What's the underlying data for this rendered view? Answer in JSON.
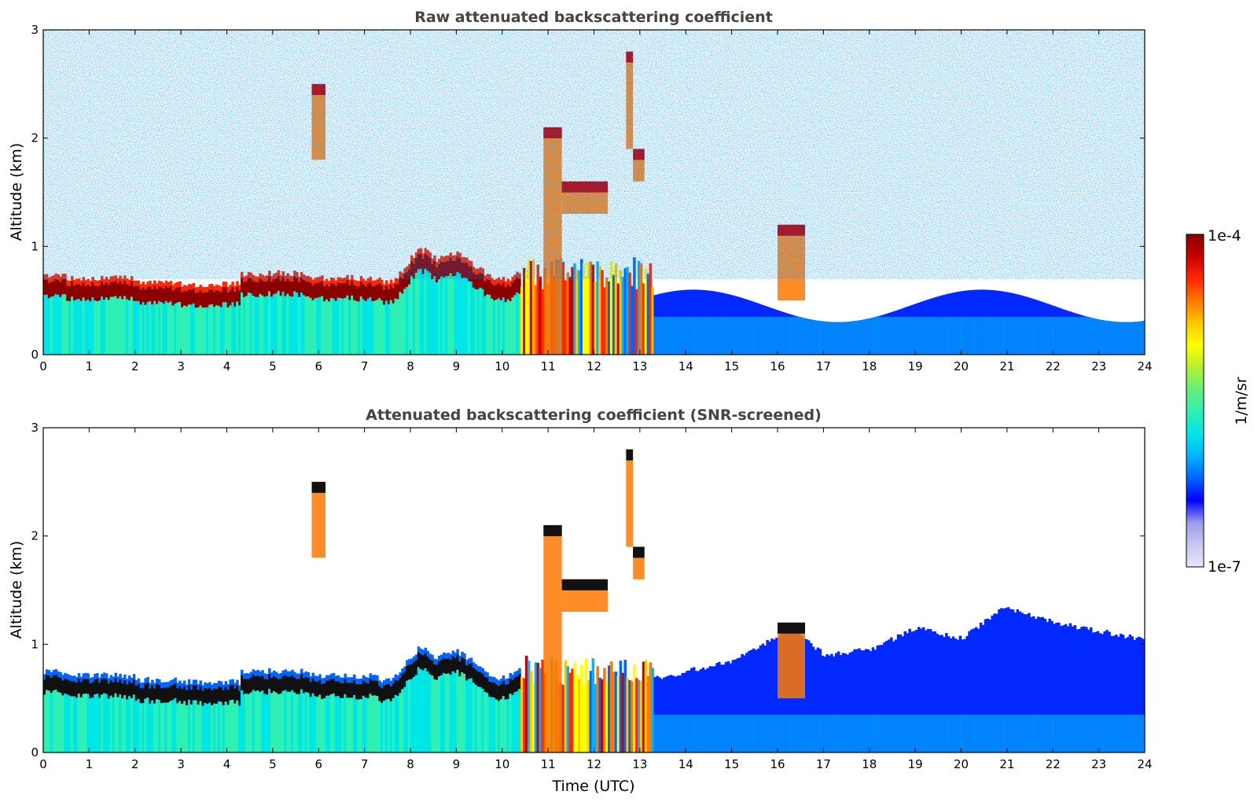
{
  "figure_label": "",
  "colorbar": {
    "max_label": "1e-4",
    "min_label": "1e-7",
    "unit_label": "1/m/sr",
    "colormap": [
      "#e6e6fa",
      "#c8c8f0",
      "#9b9bea",
      "#0000ff",
      "#0064ff",
      "#00b4ff",
      "#00e6e6",
      "#2ef0b4",
      "#64f07a",
      "#b4f032",
      "#ffff00",
      "#ffc800",
      "#ff7800",
      "#ff2800",
      "#c80000",
      "#8b0000"
    ]
  },
  "chart_data": [
    {
      "type": "heatmap",
      "title": "Raw attenuated backscattering coefficient",
      "xlabel": "",
      "ylabel": "Altitude (km)",
      "xlim": [
        0,
        24
      ],
      "ylim": [
        0,
        3
      ],
      "x_ticks": [
        "0",
        "1",
        "2",
        "3",
        "4",
        "5",
        "6",
        "7",
        "8",
        "9",
        "10",
        "11",
        "12",
        "13",
        "14",
        "15",
        "16",
        "17",
        "18",
        "19",
        "20",
        "21",
        "22",
        "23",
        "24"
      ],
      "y_ticks": [
        "0",
        "1",
        "2",
        "3"
      ],
      "boundary_layer_top_km": [
        {
          "t": 0,
          "h": 0.55
        },
        {
          "t": 2,
          "h": 0.52
        },
        {
          "t": 3,
          "h": 0.45
        },
        {
          "t": 4,
          "h": 0.45
        },
        {
          "t": 5,
          "h": 0.55
        },
        {
          "t": 6,
          "h": 0.5
        },
        {
          "t": 7,
          "h": 0.5
        },
        {
          "t": 8,
          "h": 0.65
        },
        {
          "t": 9,
          "h": 0.75
        },
        {
          "t": 10,
          "h": 0.6
        },
        {
          "t": 10.5,
          "h": 0.7
        }
      ],
      "cloud_features": [
        {
          "t_start": 10.9,
          "t_end": 11.3,
          "h_bottom": 0.0,
          "h_top": 2.1
        },
        {
          "t_start": 11.3,
          "t_end": 12.3,
          "h_bottom": 1.3,
          "h_top": 1.6
        },
        {
          "t_start": 12.7,
          "t_end": 12.85,
          "h_bottom": 1.9,
          "h_top": 2.8
        },
        {
          "t_start": 12.85,
          "t_end": 13.1,
          "h_bottom": 1.6,
          "h_top": 1.9
        },
        {
          "t_start": 5.85,
          "t_end": 6.15,
          "h_bottom": 1.8,
          "h_top": 2.5
        },
        {
          "t_start": 16.0,
          "t_end": 16.6,
          "h_bottom": 0.5,
          "h_top": 1.2
        }
      ]
    },
    {
      "type": "heatmap",
      "title": "Attenuated backscattering coefficient (SNR-screened)",
      "xlabel": "Time (UTC)",
      "ylabel": "Altitude (km)",
      "xlim": [
        0,
        24
      ],
      "ylim": [
        0,
        3
      ],
      "x_ticks": [
        "0",
        "1",
        "2",
        "3",
        "4",
        "5",
        "6",
        "7",
        "8",
        "9",
        "10",
        "11",
        "12",
        "13",
        "14",
        "15",
        "16",
        "17",
        "18",
        "19",
        "20",
        "21",
        "22",
        "23",
        "24"
      ],
      "y_ticks": [
        "0",
        "1",
        "2",
        "3"
      ],
      "valid_data_top_km": [
        {
          "t": 13.5,
          "h": 0.7
        },
        {
          "t": 15,
          "h": 0.85
        },
        {
          "t": 16.3,
          "h": 1.15
        },
        {
          "t": 17,
          "h": 0.9
        },
        {
          "t": 18,
          "h": 0.95
        },
        {
          "t": 19,
          "h": 1.15
        },
        {
          "t": 20,
          "h": 1.05
        },
        {
          "t": 20.9,
          "h": 1.35
        },
        {
          "t": 22,
          "h": 1.2
        },
        {
          "t": 23.9,
          "h": 1.05
        }
      ]
    }
  ]
}
